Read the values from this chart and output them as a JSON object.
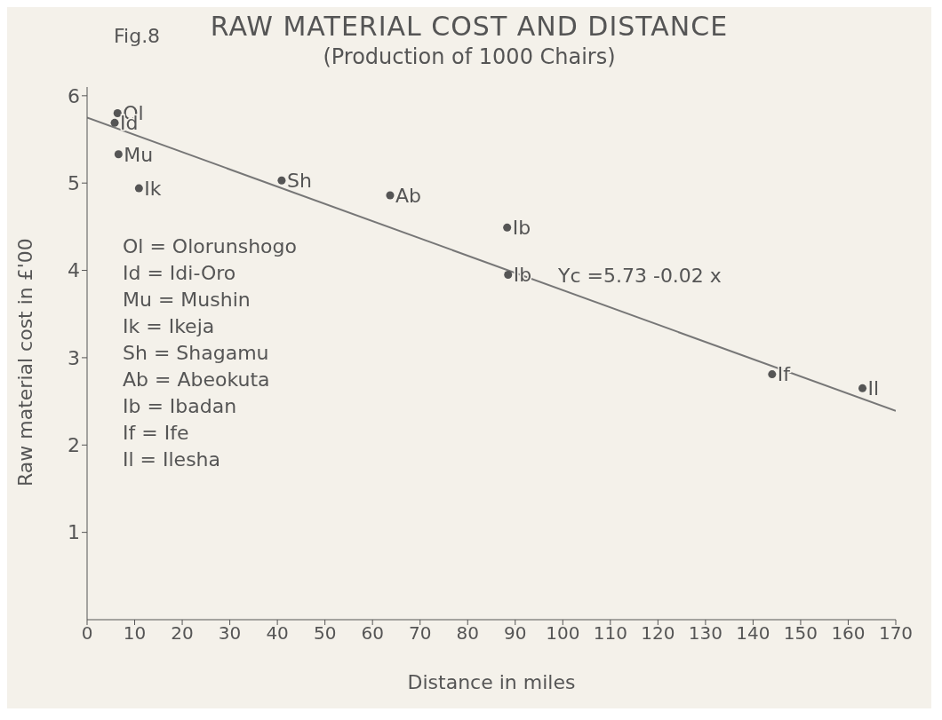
{
  "chart_data": {
    "type": "scatter",
    "title": "RAW MATERIAL COST AND DISTANCE",
    "subtitle": "(Production of 1000 Chairs)",
    "xlabel": "Distance in miles",
    "ylabel": "Raw material cost in £'00",
    "x": [
      6.4,
      5.8,
      6.6,
      10.9,
      40.9,
      63.7,
      88.3,
      88.5,
      144,
      163
    ],
    "series": [
      {
        "color": "#555555",
        "marker": "circle",
        "values": [
          5.8,
          5.69,
          5.33,
          4.94,
          5.03,
          4.86,
          4.49,
          3.95,
          2.81,
          2.65
        ]
      },
      {
        "type": "line",
        "color": "#777777",
        "x": [
          0,
          170
        ],
        "values": [
          5.75,
          2.39
        ]
      }
    ],
    "xlim": [
      0,
      170
    ],
    "xticks": [
      0,
      10,
      20,
      30,
      40,
      50,
      60,
      70,
      80,
      90,
      100,
      110,
      120,
      130,
      140,
      150,
      160,
      170
    ],
    "ylim": [
      0,
      6.1
    ],
    "yticks": [
      1,
      2,
      3,
      4,
      5,
      6
    ],
    "grid": false,
    "annotations": [
      "Fig.8",
      "Ol = Olorunshogo",
      "Id = Idi-Oro",
      "Mu = Mushin",
      "Ik = Ikeja",
      "Sh = Shagamu",
      "Ab = Abeokuta",
      "Ib = Ibadan",
      "If = Ife",
      "Il = Ilesha",
      {
        "text": "Ol",
        "x": 6.4,
        "y": 5.8
      },
      {
        "text": "Id",
        "x": 5.8,
        "y": 5.69
      },
      {
        "text": "Mu",
        "x": 6.6,
        "y": 5.33
      },
      {
        "text": "Ik",
        "x": 10.9,
        "y": 4.94
      },
      {
        "text": "Sh",
        "x": 40.9,
        "y": 5.03
      },
      {
        "text": "Ab",
        "x": 63.7,
        "y": 4.86
      },
      {
        "text": "Ib",
        "x": 88.3,
        "y": 4.49
      },
      {
        "text": "Ib",
        "x": 88.5,
        "y": 3.95
      },
      {
        "text": "If",
        "x": 144,
        "y": 2.81
      },
      {
        "text": "Il",
        "x": 163,
        "y": 2.65
      },
      "Yc =5.73 -0.02 x"
    ]
  }
}
